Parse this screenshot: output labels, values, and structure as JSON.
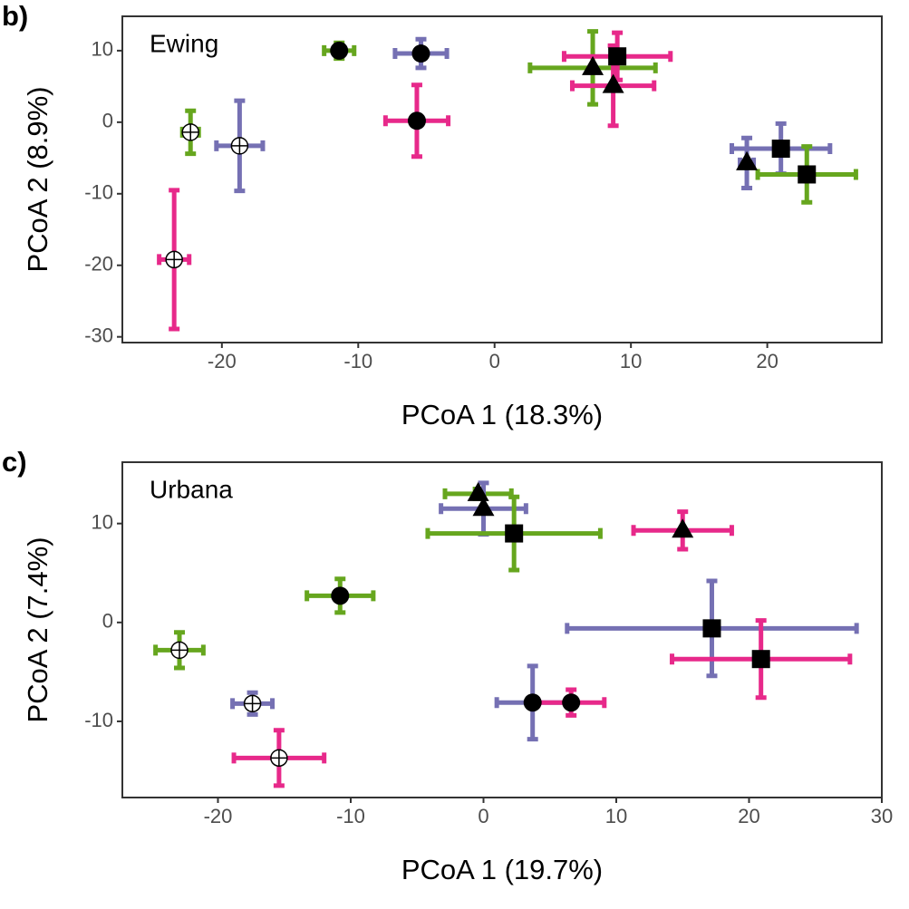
{
  "chart_data": [
    {
      "type": "scatter",
      "panel_label": "b)",
      "annotation": "Ewing",
      "xlabel": "PCoA 1 (18.3%)",
      "ylabel": "PCoA 2 (8.9%)",
      "xlim": [
        -27.3,
        28.4
      ],
      "ylim": [
        -30.8,
        14.8
      ],
      "xticks": [
        -20,
        -10,
        0,
        10,
        20
      ],
      "yticks": [
        -30,
        -20,
        -10,
        0,
        10
      ],
      "points": [
        {
          "x": -11.4,
          "y": 10.0,
          "xerr": 1.1,
          "yerr": 1.1,
          "color": "#66a61e",
          "marker": "circle"
        },
        {
          "x": -5.4,
          "y": 9.6,
          "xerr": 1.9,
          "yerr": 2.0,
          "color": "#7570b3",
          "marker": "circle"
        },
        {
          "x": -5.7,
          "y": 0.2,
          "xerr": 2.3,
          "yerr": 5.0,
          "color": "#e7298a",
          "marker": "circle"
        },
        {
          "x": -22.3,
          "y": -1.4,
          "xerr": 0.6,
          "yerr": 3.0,
          "color": "#66a61e",
          "marker": "crossed-circle"
        },
        {
          "x": -18.7,
          "y": -3.3,
          "xerr": 1.7,
          "yerr": 6.3,
          "color": "#7570b3",
          "marker": "crossed-circle"
        },
        {
          "x": -23.5,
          "y": -19.2,
          "xerr": 1.1,
          "yerr": 9.7,
          "color": "#e7298a",
          "marker": "crossed-circle"
        },
        {
          "x": 7.2,
          "y": 7.6,
          "xerr": 4.6,
          "yerr": 5.1,
          "color": "#66a61e",
          "marker": "triangle"
        },
        {
          "x": 9.0,
          "y": 9.2,
          "xerr": 3.9,
          "yerr": 3.3,
          "color": "#e7298a",
          "marker": "square"
        },
        {
          "x": 8.7,
          "y": 5.1,
          "xerr": 3.0,
          "yerr": 5.6,
          "color": "#e7298a",
          "marker": "triangle"
        },
        {
          "x": 18.5,
          "y": -5.7,
          "xerr": 0.5,
          "yerr": 3.5,
          "color": "#7570b3",
          "marker": "triangle"
        },
        {
          "x": 21.0,
          "y": -3.7,
          "xerr": 3.6,
          "yerr": 3.5,
          "color": "#7570b3",
          "marker": "square"
        },
        {
          "x": 22.9,
          "y": -7.3,
          "xerr": 3.6,
          "yerr": 3.9,
          "color": "#66a61e",
          "marker": "square"
        }
      ]
    },
    {
      "type": "scatter",
      "panel_label": "c)",
      "annotation": "Urbana",
      "xlabel": "PCoA 1 (19.7%)",
      "ylabel": "PCoA 2 (7.4%)",
      "xlim": [
        -27.2,
        30.0
      ],
      "ylim": [
        -17.7,
        16.2
      ],
      "xticks": [
        -20,
        -10,
        0,
        10,
        20,
        30
      ],
      "yticks": [
        -10,
        0,
        10
      ],
      "points": [
        {
          "x": -10.8,
          "y": 2.7,
          "xerr": 2.5,
          "yerr": 1.7,
          "color": "#66a61e",
          "marker": "circle"
        },
        {
          "x": -22.9,
          "y": -2.8,
          "xerr": 1.8,
          "yerr": 1.8,
          "color": "#66a61e",
          "marker": "crossed-circle"
        },
        {
          "x": -17.4,
          "y": -8.2,
          "xerr": 1.5,
          "yerr": 1.1,
          "color": "#7570b3",
          "marker": "crossed-circle"
        },
        {
          "x": -15.4,
          "y": -13.7,
          "xerr": 3.4,
          "yerr": 2.8,
          "color": "#e7298a",
          "marker": "crossed-circle"
        },
        {
          "x": -0.4,
          "y": 13.0,
          "xerr": 2.5,
          "yerr": 0.5,
          "color": "#66a61e",
          "marker": "triangle"
        },
        {
          "x": 0.0,
          "y": 11.5,
          "xerr": 3.2,
          "yerr": 2.6,
          "color": "#7570b3",
          "marker": "triangle"
        },
        {
          "x": 2.3,
          "y": 9.0,
          "xerr": 6.5,
          "yerr": 3.7,
          "color": "#66a61e",
          "marker": "square"
        },
        {
          "x": 15.0,
          "y": 9.3,
          "xerr": 3.7,
          "yerr": 1.9,
          "color": "#e7298a",
          "marker": "triangle"
        },
        {
          "x": 17.2,
          "y": -0.6,
          "xerr": 10.9,
          "yerr": 4.8,
          "color": "#7570b3",
          "marker": "square"
        },
        {
          "x": 20.9,
          "y": -3.7,
          "xerr": 6.7,
          "yerr": 3.9,
          "color": "#e7298a",
          "marker": "square"
        },
        {
          "x": 3.7,
          "y": -8.1,
          "xerr": 2.7,
          "yerr": 3.7,
          "color": "#7570b3",
          "marker": "circle"
        },
        {
          "x": 6.6,
          "y": -8.1,
          "xerr": 2.5,
          "yerr": 1.3,
          "color": "#e7298a",
          "marker": "circle"
        }
      ]
    }
  ]
}
